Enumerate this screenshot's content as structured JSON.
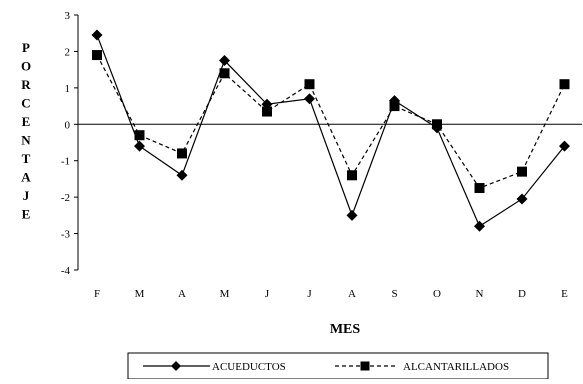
{
  "chart_data": {
    "type": "line",
    "title": "",
    "xlabel": "MES",
    "ylabel": "PORCENTAJE",
    "categories": [
      "F",
      "M",
      "A",
      "M",
      "J",
      "J",
      "A",
      "S",
      "O",
      "N",
      "D",
      "E"
    ],
    "ylim": [
      -4,
      3
    ],
    "yticks": [
      3,
      2,
      1,
      0,
      -1,
      -2,
      -3,
      -4
    ],
    "grid": false,
    "legend_position": "bottom",
    "series": [
      {
        "name": "ACUEDUCTOS",
        "marker": "diamond",
        "line_style": "solid",
        "values": [
          2.45,
          -0.6,
          -1.4,
          1.75,
          0.55,
          0.7,
          -2.5,
          0.65,
          -0.1,
          -2.8,
          -2.05,
          -0.6
        ]
      },
      {
        "name": "ALCANTARILLADOS",
        "marker": "square",
        "line_style": "dashed",
        "values": [
          1.9,
          -0.3,
          -0.8,
          1.4,
          0.35,
          1.1,
          -1.4,
          0.5,
          0.0,
          -1.75,
          -1.3,
          1.1
        ]
      }
    ]
  }
}
